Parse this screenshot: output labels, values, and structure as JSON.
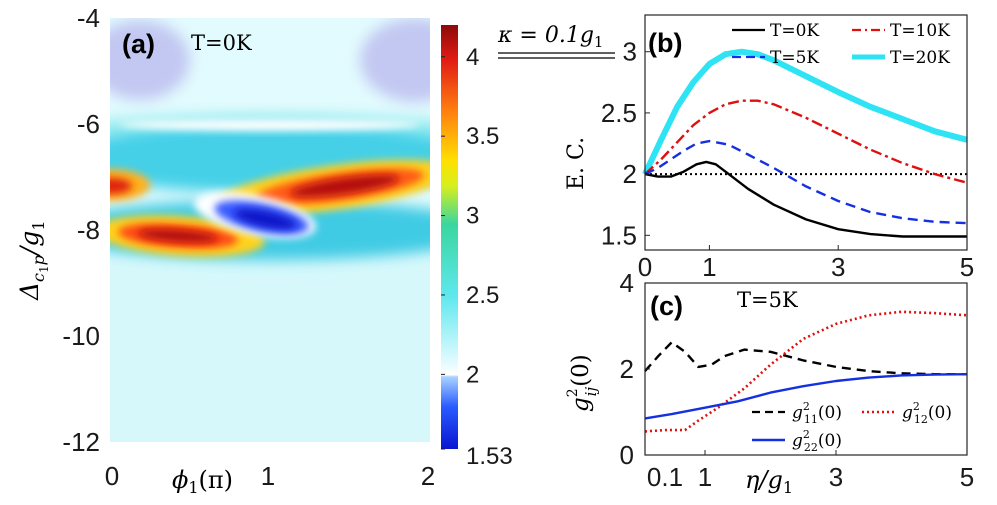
{
  "chart_data": [
    {
      "id": "a",
      "type": "heatmap",
      "panel_label": "(a)",
      "annotation": "T=0K",
      "xlabel": "ϕ1(π)",
      "ylabel": "Δc1p/g1",
      "x_ticks": [
        "0",
        "1",
        "2"
      ],
      "y_ticks": [
        "-4",
        "-6",
        "-8",
        "-10",
        "-12"
      ],
      "xlim": [
        0,
        2
      ],
      "ylim": [
        -12,
        -4
      ],
      "colorbar": {
        "ticks": [
          "4",
          "3.5",
          "3",
          "2.5",
          "2",
          "1.53"
        ],
        "min": 1.53,
        "max": 4.2
      },
      "features": [
        {
          "x": 0.0,
          "y": -4.3,
          "value": 1.88
        },
        {
          "x": 2.0,
          "y": -4.3,
          "value": 1.88
        },
        {
          "x": 1.0,
          "y": -6.0,
          "value": 2.55
        },
        {
          "x": 1.65,
          "y": -7.1,
          "value": 4.1
        },
        {
          "x": 0.0,
          "y": -7.15,
          "value": 3.8
        },
        {
          "x": 0.35,
          "y": -8.0,
          "value": 4.1
        },
        {
          "x": 1.2,
          "y": -7.8,
          "value": 1.55
        },
        {
          "x": 0.85,
          "y": -7.55,
          "value": 2.3
        }
      ]
    },
    {
      "id": "b",
      "type": "line",
      "panel_label": "(b)",
      "annotation": "κ = 0.1g1",
      "ylabel": "E. C.",
      "x_ticks": [
        "0",
        "1",
        "3",
        "5"
      ],
      "y_ticks": [
        "3",
        "2.5",
        "2",
        "1.5"
      ],
      "xlim": [
        0,
        5
      ],
      "ylim": [
        1.38,
        3.3
      ],
      "reference_line": 2.0,
      "series": [
        {
          "name": "T=0K",
          "color": "#000000",
          "style": "solid",
          "x": [
            0,
            0.2,
            0.4,
            0.6,
            0.8,
            0.95,
            1.1,
            1.3,
            1.6,
            2,
            2.5,
            3,
            3.5,
            4,
            4.5,
            5
          ],
          "y": [
            2.0,
            1.98,
            1.98,
            2.02,
            2.08,
            2.1,
            2.08,
            2.0,
            1.88,
            1.75,
            1.63,
            1.55,
            1.51,
            1.49,
            1.49,
            1.49
          ]
        },
        {
          "name": "T=10K",
          "color": "#e01010",
          "style": "dashdot",
          "x": [
            0,
            0.25,
            0.5,
            0.75,
            1,
            1.25,
            1.5,
            1.75,
            2,
            2.5,
            3,
            3.5,
            4,
            4.5,
            5
          ],
          "y": [
            2.0,
            2.12,
            2.26,
            2.4,
            2.5,
            2.57,
            2.6,
            2.6,
            2.57,
            2.46,
            2.33,
            2.2,
            2.09,
            2.0,
            1.93
          ]
        },
        {
          "name": "T=5K",
          "color": "#1530e0",
          "style": "dashed",
          "x": [
            0,
            0.2,
            0.4,
            0.6,
            0.8,
            1,
            1.3,
            1.6,
            2,
            2.5,
            3,
            3.5,
            4,
            4.5,
            5
          ],
          "y": [
            2.0,
            2.05,
            2.12,
            2.19,
            2.25,
            2.27,
            2.24,
            2.16,
            2.05,
            1.9,
            1.78,
            1.69,
            1.64,
            1.61,
            1.6
          ]
        },
        {
          "name": "T=20K",
          "color": "#2ee4f4",
          "style": "thick",
          "x": [
            0,
            0.25,
            0.5,
            0.75,
            1,
            1.25,
            1.5,
            1.75,
            2,
            2.5,
            3,
            3.5,
            4,
            4.5,
            5
          ],
          "y": [
            2.0,
            2.28,
            2.55,
            2.75,
            2.9,
            2.98,
            3.0,
            2.98,
            2.93,
            2.8,
            2.67,
            2.55,
            2.45,
            2.35,
            2.28
          ]
        }
      ]
    },
    {
      "id": "c",
      "type": "line",
      "panel_label": "(c)",
      "annotation": "T=5K",
      "xlabel": "η/g1",
      "ylabel": "g_ij^2(0)",
      "x_ticks": [
        "0.1",
        "1",
        "3",
        "5"
      ],
      "y_ticks": [
        "4",
        "2",
        "0"
      ],
      "xlim": [
        0.1,
        5
      ],
      "ylim": [
        0,
        4
      ],
      "series": [
        {
          "name": "g11^2(0)",
          "color": "#000000",
          "style": "dashed",
          "x": [
            0.1,
            0.3,
            0.5,
            0.7,
            0.9,
            1.1,
            1.3,
            1.6,
            2,
            2.5,
            3,
            3.5,
            4,
            4.5,
            5
          ],
          "y": [
            1.95,
            2.3,
            2.62,
            2.4,
            2.05,
            2.1,
            2.3,
            2.45,
            2.4,
            2.2,
            2.05,
            1.95,
            1.9,
            1.88,
            1.88
          ]
        },
        {
          "name": "g12^2(0)",
          "color": "#e01010",
          "style": "dotted",
          "x": [
            0.1,
            0.4,
            0.7,
            0.9,
            1.2,
            1.6,
            2,
            2.5,
            3,
            3.5,
            4,
            4.5,
            5
          ],
          "y": [
            0.55,
            0.58,
            0.58,
            0.8,
            1.1,
            1.55,
            2.1,
            2.7,
            3.05,
            3.25,
            3.33,
            3.3,
            3.25
          ]
        },
        {
          "name": "g22^2(0)",
          "color": "#1530e0",
          "style": "solid",
          "x": [
            0.1,
            0.5,
            1,
            1.5,
            2,
            2.5,
            3,
            3.5,
            4,
            4.5,
            5
          ],
          "y": [
            0.85,
            0.95,
            1.1,
            1.25,
            1.45,
            1.6,
            1.72,
            1.8,
            1.85,
            1.87,
            1.88
          ]
        }
      ]
    }
  ]
}
